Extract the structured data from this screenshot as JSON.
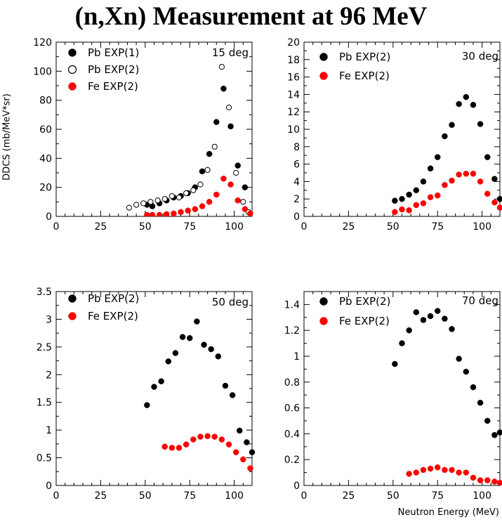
{
  "title": "(n,Xn) Measurement at 96 MeV",
  "shared_ylabel": "DDCS (mb/MeV*sr)",
  "shared_xlabel": "Neutron Energy (MeV)",
  "colors": {
    "black": "#000000",
    "red": "#ff0000"
  },
  "chart_data": [
    {
      "type": "scatter",
      "angle_label": "15 deg",
      "xlim": [
        0,
        110
      ],
      "ylim": [
        0,
        120
      ],
      "x_ticks": [
        0,
        25,
        50,
        75,
        100
      ],
      "y_ticks": [
        0,
        20,
        40,
        60,
        80,
        100,
        120
      ],
      "legend": "top-left",
      "series": [
        {
          "name": "Pb EXP(1)",
          "marker": "filled",
          "color": "#000000",
          "x": [
            51,
            54,
            58,
            62,
            66,
            70,
            74,
            78,
            82,
            86,
            90,
            94,
            98,
            102,
            106
          ],
          "y": [
            8,
            7,
            9,
            11,
            13,
            14,
            16,
            20,
            31,
            43,
            65,
            88,
            62,
            35,
            20
          ]
        },
        {
          "name": "Pb EXP(2)",
          "marker": "open",
          "color": "#000000",
          "x": [
            41,
            45,
            49,
            53,
            57,
            61,
            65,
            69,
            73,
            77,
            81,
            85,
            89,
            93,
            97,
            101,
            105,
            108
          ],
          "y": [
            6,
            8,
            9,
            10,
            11,
            12,
            14,
            13,
            16,
            18,
            22,
            32,
            48,
            103,
            75,
            30,
            10,
            3
          ]
        },
        {
          "name": "Fe EXP(2)",
          "marker": "filled",
          "color": "#ff0000",
          "x": [
            51,
            54,
            58,
            62,
            66,
            70,
            74,
            78,
            82,
            86,
            90,
            94,
            98,
            102,
            106,
            109
          ],
          "y": [
            1,
            1,
            1,
            1.5,
            2,
            3,
            4,
            5,
            7,
            10,
            15,
            26,
            22,
            11,
            5,
            2
          ]
        }
      ]
    },
    {
      "type": "scatter",
      "angle_label": "30 deg",
      "xlim": [
        0,
        110
      ],
      "ylim": [
        0,
        20
      ],
      "x_ticks": [
        0,
        25,
        50,
        75,
        100
      ],
      "y_ticks": [
        0,
        2,
        4,
        6,
        8,
        10,
        12,
        14,
        16,
        18,
        20
      ],
      "legend": "top-left",
      "series": [
        {
          "name": "Pb EXP(2)",
          "marker": "filled",
          "color": "#000000",
          "x": [
            51,
            55,
            59,
            63,
            67,
            71,
            75,
            79,
            83,
            87,
            91,
            95,
            99,
            103,
            107,
            110
          ],
          "y": [
            1.8,
            2.0,
            2.5,
            3.0,
            4.0,
            5.5,
            6.8,
            9.2,
            10.5,
            12.9,
            13.7,
            12.8,
            10.6,
            6.8,
            4.3,
            2.0
          ]
        },
        {
          "name": "Fe EXP(2)",
          "marker": "filled",
          "color": "#ff0000",
          "x": [
            51,
            55,
            59,
            63,
            67,
            71,
            75,
            79,
            83,
            87,
            91,
            95,
            99,
            103,
            107,
            110
          ],
          "y": [
            0.5,
            0.8,
            0.7,
            1.3,
            1.5,
            2.2,
            2.4,
            3.6,
            4.1,
            4.8,
            4.9,
            4.9,
            4.0,
            2.6,
            1.6,
            1.0
          ]
        }
      ]
    },
    {
      "type": "scatter",
      "angle_label": "50 deg",
      "xlim": [
        0,
        110
      ],
      "ylim": [
        0,
        3.5
      ],
      "x_ticks": [
        0,
        25,
        50,
        75,
        100
      ],
      "y_ticks": [
        0,
        0.5,
        1,
        1.5,
        2,
        2.5,
        3,
        3.5
      ],
      "legend": "top-left",
      "series": [
        {
          "name": "Pb EXP(2)",
          "marker": "filled",
          "color": "#000000",
          "x": [
            51,
            55,
            59,
            63,
            67,
            71,
            75,
            79,
            83,
            87,
            91,
            95,
            99,
            103,
            107,
            110
          ],
          "y": [
            1.45,
            1.78,
            1.88,
            2.24,
            2.39,
            2.68,
            2.66,
            2.96,
            2.54,
            2.46,
            2.33,
            1.8,
            1.63,
            0.99,
            0.78,
            0.6
          ]
        },
        {
          "name": "Fe EXP(2)",
          "marker": "filled",
          "color": "#ff0000",
          "x": [
            61,
            65,
            69,
            73,
            77,
            81,
            85,
            89,
            93,
            97,
            101,
            105,
            109
          ],
          "y": [
            0.7,
            0.68,
            0.68,
            0.74,
            0.83,
            0.88,
            0.89,
            0.88,
            0.83,
            0.74,
            0.6,
            0.47,
            0.31
          ]
        }
      ]
    },
    {
      "type": "scatter",
      "angle_label": "70 deg",
      "xlim": [
        0,
        110
      ],
      "ylim": [
        0,
        1.5
      ],
      "x_ticks": [
        0,
        25,
        50,
        75,
        100
      ],
      "y_ticks": [
        0,
        0.2,
        0.4,
        0.6,
        0.8,
        1,
        1.2,
        1.4
      ],
      "y_tick_labels": [
        "0",
        "0.2",
        "0.4",
        "0.6",
        "0.8",
        "1",
        "1.2",
        "1.4"
      ],
      "legend": "top-left",
      "series": [
        {
          "name": "Pb EXP(2)",
          "marker": "filled",
          "color": "#000000",
          "x": [
            51,
            55,
            59,
            63,
            67,
            71,
            75,
            79,
            83,
            87,
            91,
            95,
            99,
            103,
            107,
            110
          ],
          "y": [
            0.94,
            1.1,
            1.2,
            1.34,
            1.28,
            1.31,
            1.35,
            1.29,
            1.21,
            0.98,
            0.88,
            0.76,
            0.64,
            0.5,
            0.39,
            0.41
          ]
        },
        {
          "name": "Fe EXP(2)",
          "marker": "filled",
          "color": "#ff0000",
          "x": [
            59,
            63,
            67,
            71,
            75,
            79,
            83,
            87,
            91,
            95,
            99,
            103,
            107,
            110
          ],
          "y": [
            0.09,
            0.1,
            0.12,
            0.13,
            0.14,
            0.12,
            0.12,
            0.1,
            0.1,
            0.06,
            0.04,
            0.04,
            0.03,
            0.02
          ]
        }
      ]
    }
  ]
}
